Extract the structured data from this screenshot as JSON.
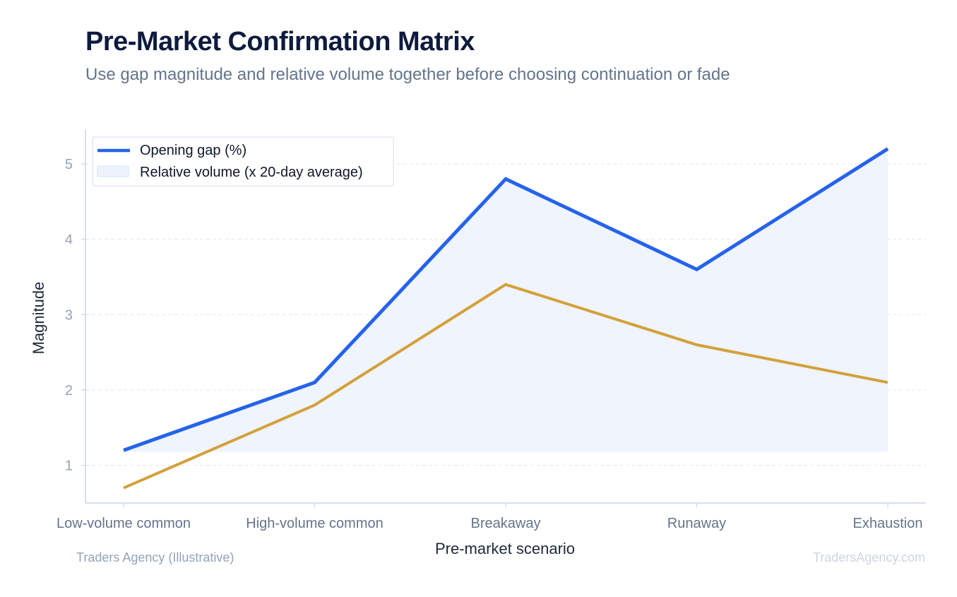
{
  "header": {
    "title": "Pre-Market Confirmation Matrix",
    "subtitle": "Use gap magnitude and relative volume together before choosing continuation or fade"
  },
  "footer": {
    "left": "Traders Agency (Illustrative)",
    "right": "TradersAgency.com"
  },
  "colors": {
    "gap_line": "#2563eb",
    "volume_line": "#d4a03a",
    "fill": "#eef3fd",
    "grid": "#e5e7eb",
    "axis": "#cbd5e1"
  },
  "chart_data": {
    "type": "line",
    "categories": [
      "Low-volume common",
      "High-volume common",
      "Breakaway",
      "Runaway",
      "Exhaustion"
    ],
    "series": [
      {
        "name": "Opening gap (%)",
        "values": [
          1.2,
          2.1,
          4.8,
          3.6,
          5.2
        ]
      },
      {
        "name": "Relative volume (x 20-day average)",
        "values": [
          0.7,
          1.8,
          3.4,
          2.6,
          2.1
        ]
      }
    ],
    "area_fill": "under Opening gap (%) line",
    "xlabel": "Pre-market scenario",
    "ylabel": "Magnitude",
    "yticks": [
      1,
      2,
      3,
      4,
      5
    ],
    "ylim": [
      0.5,
      5.45
    ],
    "grid": "horizontal dashed",
    "legend": "top-left"
  }
}
